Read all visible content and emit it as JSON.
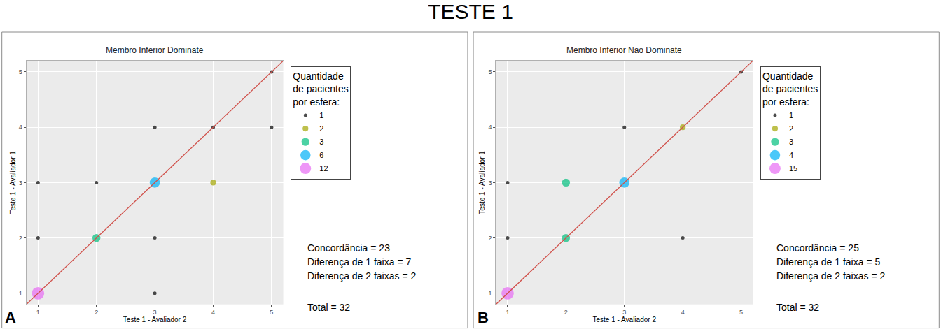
{
  "title": "TESTE 1",
  "chart_data": [
    {
      "type": "scatter",
      "panel": "A",
      "title": "Membro Inferior Dominate",
      "x_label": "Teste 1 - Avaliador 2",
      "y_label": "Teste 1 - Avaliador 1",
      "xlim": [
        0.8,
        5.2
      ],
      "ylim": [
        0.8,
        5.2
      ],
      "xticks": [
        1,
        2,
        3,
        4,
        5
      ],
      "yticks": [
        1,
        2,
        3,
        4,
        5
      ],
      "grid": true,
      "legend_title": [
        "Quantidade",
        "de pacientes",
        "por esfera:"
      ],
      "series": [
        {
          "name": "1",
          "color": "#000000",
          "marker": "circle",
          "x": [
            1,
            1,
            2,
            3,
            3,
            3,
            4,
            5,
            5
          ],
          "y": [
            2,
            3,
            3,
            1,
            2,
            4,
            4,
            4,
            5
          ],
          "size": [
            1,
            1,
            1,
            1,
            1,
            1,
            1,
            1,
            1
          ]
        },
        {
          "name": "2",
          "color": "#a3a500",
          "marker": "circle",
          "x": [
            4
          ],
          "y": [
            3
          ],
          "size": [
            2
          ]
        },
        {
          "name": "3",
          "color": "#00bf7d",
          "marker": "circle",
          "x": [
            2
          ],
          "y": [
            2
          ],
          "size": [
            3
          ]
        },
        {
          "name": "6",
          "color": "#00b0f6",
          "marker": "circle",
          "x": [
            3
          ],
          "y": [
            3
          ],
          "size": [
            6
          ]
        },
        {
          "name": "12",
          "color": "#e76bf3",
          "marker": "circle",
          "x": [
            1
          ],
          "y": [
            1
          ],
          "size": [
            12
          ]
        },
        {
          "type": "line",
          "color": "#d0504a",
          "line_style": "solid",
          "x": [
            0.8,
            5.2
          ],
          "y": [
            0.8,
            5.2
          ]
        }
      ],
      "annotations": [
        "Concordância = 23",
        "Diferença de 1 faixa = 7",
        "Diferença de 2 faixas = 2",
        "Total = 32"
      ]
    },
    {
      "type": "scatter",
      "panel": "B",
      "title": "Membro Inferior Não Dominate",
      "x_label": "Teste 1 - Avaliador 2",
      "y_label": "Teste 1 - Avaliador 1",
      "xlim": [
        0.8,
        5.2
      ],
      "ylim": [
        0.8,
        5.2
      ],
      "xticks": [
        1,
        2,
        3,
        4,
        5
      ],
      "yticks": [
        1,
        2,
        3,
        4,
        5
      ],
      "grid": true,
      "legend_title": [
        "Quantidade",
        "de pacientes",
        "por esfera:"
      ],
      "series": [
        {
          "name": "1",
          "color": "#000000",
          "marker": "circle",
          "x": [
            1,
            1,
            3,
            4,
            5
          ],
          "y": [
            2,
            3,
            4,
            2,
            5
          ],
          "size": [
            1,
            1,
            1,
            1,
            1
          ]
        },
        {
          "name": "2",
          "color": "#a3a500",
          "marker": "circle",
          "x": [
            4
          ],
          "y": [
            4
          ],
          "size": [
            2
          ]
        },
        {
          "name": "3",
          "color": "#00bf7d",
          "marker": "circle",
          "x": [
            2,
            2
          ],
          "y": [
            2,
            3
          ],
          "size": [
            3,
            3
          ]
        },
        {
          "name": "4",
          "color": "#00b0f6",
          "marker": "circle",
          "x": [
            3
          ],
          "y": [
            3
          ],
          "size": [
            4
          ]
        },
        {
          "name": "15",
          "color": "#e76bf3",
          "marker": "circle",
          "x": [
            1
          ],
          "y": [
            1
          ],
          "size": [
            15
          ]
        },
        {
          "type": "line",
          "color": "#d0504a",
          "line_style": "solid",
          "x": [
            0.8,
            5.2
          ],
          "y": [
            0.8,
            5.2
          ]
        }
      ],
      "annotations": [
        "Concordância = 25",
        "Diferença de 1 faixa = 5",
        "Diferença de 2 faixas = 2",
        "Total = 32"
      ]
    }
  ]
}
